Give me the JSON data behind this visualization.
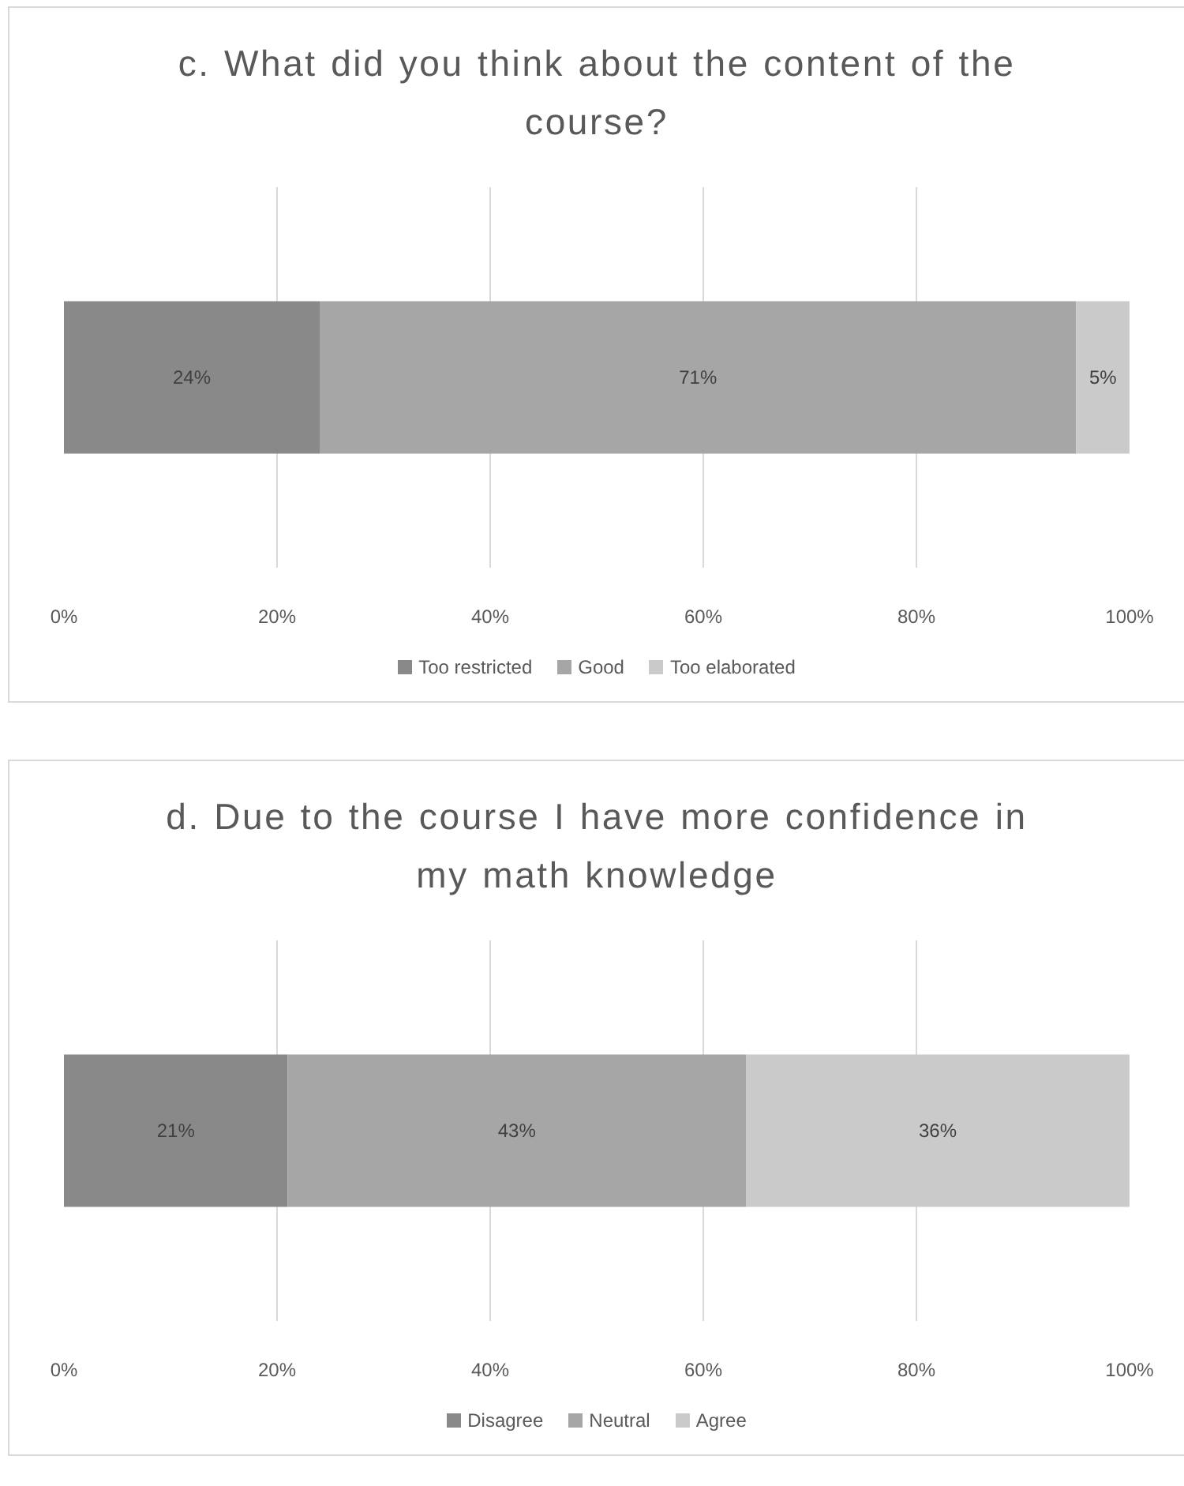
{
  "chart_data": [
    {
      "type": "bar",
      "orientation": "horizontal",
      "stacked": true,
      "title": "c. What did you think about the content of the course?",
      "categories": [
        null
      ],
      "series": [
        {
          "name": "Too restricted",
          "color": "#898989",
          "values": [
            24
          ],
          "value_labels": [
            "24%"
          ]
        },
        {
          "name": "Good",
          "color": "#a6a6a6",
          "values": [
            71
          ],
          "value_labels": [
            "71%"
          ]
        },
        {
          "name": "Too elaborated",
          "color": "#cacaca",
          "values": [
            5
          ],
          "value_labels": [
            "5%"
          ]
        }
      ],
      "xlim": [
        0,
        100
      ],
      "xticks": [
        {
          "value": 0,
          "label": "0%"
        },
        {
          "value": 20,
          "label": "20%"
        },
        {
          "value": 40,
          "label": "40%"
        },
        {
          "value": 60,
          "label": "60%"
        },
        {
          "value": 80,
          "label": "80%"
        },
        {
          "value": 100,
          "label": "100%"
        }
      ],
      "grid": "x",
      "legend": "bottom"
    },
    {
      "type": "bar",
      "orientation": "horizontal",
      "stacked": true,
      "title": "d. Due to the course I have more confidence in my math knowledge",
      "categories": [
        null
      ],
      "series": [
        {
          "name": "Disagree",
          "color": "#898989",
          "values": [
            21
          ],
          "value_labels": [
            "21%"
          ]
        },
        {
          "name": "Neutral",
          "color": "#a6a6a6",
          "values": [
            43
          ],
          "value_labels": [
            "43%"
          ]
        },
        {
          "name": "Agree",
          "color": "#cacaca",
          "values": [
            36
          ],
          "value_labels": [
            "36%"
          ]
        }
      ],
      "xlim": [
        0,
        100
      ],
      "xticks": [
        {
          "value": 0,
          "label": "0%"
        },
        {
          "value": 20,
          "label": "20%"
        },
        {
          "value": 40,
          "label": "40%"
        },
        {
          "value": 60,
          "label": "60%"
        },
        {
          "value": 80,
          "label": "80%"
        },
        {
          "value": 100,
          "label": "100%"
        }
      ],
      "grid": "x",
      "legend": "bottom"
    }
  ]
}
